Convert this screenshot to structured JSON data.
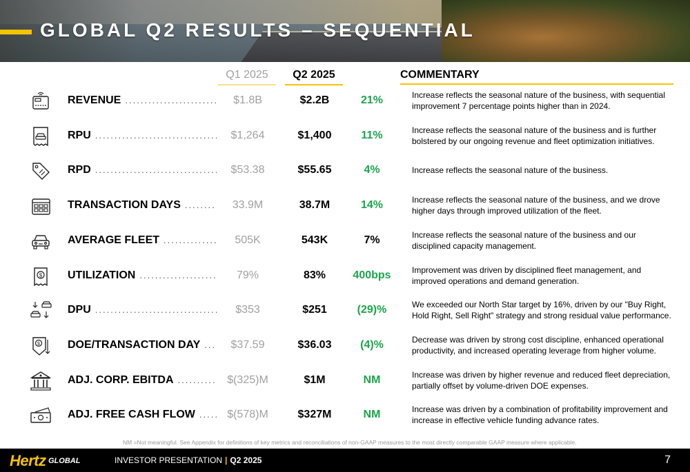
{
  "title": "GLOBAL Q2 RESULTS – SEQUENTIAL",
  "headers": {
    "q1": "Q1 2025",
    "q2": "Q2 2025",
    "commentary": "COMMENTARY"
  },
  "rows": [
    {
      "icon": "payment-terminal-icon",
      "label": "REVENUE",
      "q1": "$1.8B",
      "q2": "$2.2B",
      "change": "21%",
      "change_color": "#1aa54a",
      "commentary": "Increase reflects the seasonal nature of the business, with sequential improvement 7 percentage points higher than in 2024."
    },
    {
      "icon": "car-receipt-icon",
      "label": "RPU",
      "q1": "$1,264",
      "q2": "$1,400",
      "change": "11%",
      "change_color": "#1aa54a",
      "commentary": "Increase reflects the seasonal nature of the business and is further bolstered by our ongoing revenue and fleet optimization initiatives."
    },
    {
      "icon": "price-tag-icon",
      "label": "RPD",
      "q1": "$53.38",
      "q2": "$55.65",
      "change": "4%",
      "change_color": "#1aa54a",
      "commentary": "Increase reflects the seasonal nature of the business."
    },
    {
      "icon": "calendar-icon",
      "label": "TRANSACTION DAYS",
      "q1": "33.9M",
      "q2": "38.7M",
      "change": "14%",
      "change_color": "#1aa54a",
      "commentary": "Increase reflects the seasonal nature of the business, and we drove higher days through improved utilization of the fleet."
    },
    {
      "icon": "car-icon",
      "label": "AVERAGE FLEET",
      "q1": "505K",
      "q2": "543K",
      "change": "7%",
      "change_color": "#000000",
      "commentary": "Increase reflects the seasonal nature of the business and our disciplined capacity management."
    },
    {
      "icon": "dollar-receipt-icon",
      "label": "UTILIZATION",
      "q1": "79%",
      "q2": "83%",
      "change": "400bps",
      "change_color": "#1aa54a",
      "commentary": "Improvement was driven by disciplined fleet management, and improved operations and demand generation."
    },
    {
      "icon": "car-exchange-icon",
      "label": "DPU",
      "q1": "$353",
      "q2": "$251",
      "change": "(29)%",
      "change_color": "#1aa54a",
      "commentary": "We exceeded our North Star target by 16%, driven by our \"Buy Right, Hold Right, Sell Right\" strategy and strong residual value performance."
    },
    {
      "icon": "cost-down-icon",
      "label": "DOE/TRANSACTION DAY",
      "q1": "$37.59",
      "q2": "$36.03",
      "change": "(4)%",
      "change_color": "#1aa54a",
      "commentary": "Decrease was driven by strong cost discipline, enhanced operational productivity, and increased operating leverage from higher volume."
    },
    {
      "icon": "bank-icon",
      "label": "ADJ. CORP. EBITDA",
      "q1": "$(325)M",
      "q2": "$1M",
      "change": "NM",
      "change_color": "#1aa54a",
      "commentary": "Increase was driven by higher revenue and reduced fleet depreciation, partially offset by volume-driven DOE expenses."
    },
    {
      "icon": "cash-icon",
      "label": "ADJ. FREE CASH FLOW",
      "q1": "$(578)M",
      "q2": "$327M",
      "change": "NM",
      "change_color": "#1aa54a",
      "commentary": "Increase was driven by a combination of profitability improvement and increase in effective vehicle funding advance rates."
    }
  ],
  "footnote": "NM =Not meaningful. See Appendix for definitions of key metrics and reconciliations of non-GAAP measures to the most directly comparable GAAP measure where applicable.",
  "footer": {
    "logo": "Hertz",
    "logo_sub": "GLOBAL",
    "presentation": "INVESTOR PRESENTATION",
    "separator": "|",
    "quarter": "Q2 2025",
    "page_number": "7"
  },
  "colors": {
    "accent": "#f5c400",
    "positive": "#1aa54a",
    "muted": "#a0a0a0"
  }
}
